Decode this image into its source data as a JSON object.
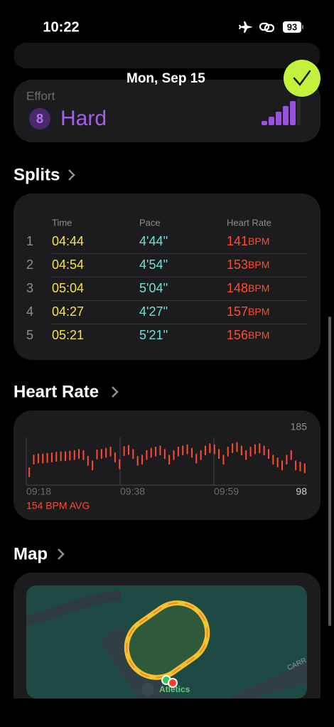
{
  "status_bar": {
    "time": "10:22",
    "battery": "93"
  },
  "header": {
    "date": "Mon, Sep 15"
  },
  "effort": {
    "label": "Effort",
    "score": "8",
    "level": "Hard"
  },
  "splits": {
    "title": "Splits",
    "columns": [
      "Time",
      "Pace",
      "Heart Rate"
    ],
    "rows": [
      {
        "index": "1",
        "time": "04:44",
        "pace": "4'44''",
        "hr": "141",
        "unit": "BPM"
      },
      {
        "index": "2",
        "time": "04:54",
        "pace": "4'54''",
        "hr": "153",
        "unit": "BPM"
      },
      {
        "index": "3",
        "time": "05:04",
        "pace": "5'04''",
        "hr": "148",
        "unit": "BPM"
      },
      {
        "index": "4",
        "time": "04:27",
        "pace": "4'27''",
        "hr": "157",
        "unit": "BPM"
      },
      {
        "index": "5",
        "time": "05:21",
        "pace": "5'21''",
        "hr": "156",
        "unit": "BPM"
      }
    ]
  },
  "heart_rate": {
    "title": "Heart Rate",
    "avg": "154 BPM AVG",
    "chart_data": {
      "type": "bar",
      "color": "#ff4b32",
      "x_labels": [
        "09:18",
        "09:38",
        "09:59"
      ],
      "ylim": [
        98,
        185
      ],
      "yticks": [
        98,
        185
      ],
      "values": [
        128,
        150,
        152,
        152,
        153,
        154,
        155,
        156,
        156,
        157,
        158,
        160,
        158,
        148,
        140,
        159,
        160,
        162,
        164,
        154,
        142,
        165,
        167,
        160,
        148,
        150,
        158,
        162,
        164,
        166,
        160,
        150,
        158,
        164,
        166,
        168,
        162,
        152,
        158,
        166,
        170,
        168,
        160,
        150,
        164,
        170,
        172,
        166,
        158,
        164,
        168,
        170,
        166,
        160,
        150,
        145,
        140,
        150,
        158,
        140,
        138,
        135
      ]
    }
  },
  "map": {
    "title": "Map",
    "place": "Atletics",
    "street": "CARR"
  }
}
